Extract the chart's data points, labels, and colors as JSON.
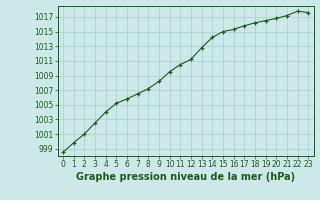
{
  "x": [
    0,
    1,
    2,
    3,
    4,
    5,
    6,
    7,
    8,
    9,
    10,
    11,
    12,
    13,
    14,
    15,
    16,
    17,
    18,
    19,
    20,
    21,
    22,
    23
  ],
  "y": [
    998.5,
    999.8,
    1001.0,
    1002.5,
    1004.0,
    1005.2,
    1005.8,
    1006.5,
    1007.2,
    1008.2,
    1009.5,
    1010.5,
    1011.2,
    1012.8,
    1014.2,
    1015.0,
    1015.3,
    1015.8,
    1016.2,
    1016.5,
    1016.8,
    1017.2,
    1017.8,
    1017.6
  ],
  "line_color": "#1a5c1a",
  "marker": "+",
  "marker_color": "#1a5c1a",
  "bg_color": "#cce8e8",
  "grid_color": "#aacfcf",
  "title": "Graphe pression niveau de la mer (hPa)",
  "xlim": [
    -0.5,
    23.5
  ],
  "ylim": [
    998,
    1018.5
  ],
  "yticks": [
    999,
    1001,
    1003,
    1005,
    1007,
    1009,
    1011,
    1013,
    1015,
    1017
  ],
  "xticks": [
    0,
    1,
    2,
    3,
    4,
    5,
    6,
    7,
    8,
    9,
    10,
    11,
    12,
    13,
    14,
    15,
    16,
    17,
    18,
    19,
    20,
    21,
    22,
    23
  ],
  "title_fontsize": 7,
  "tick_fontsize": 5.5,
  "title_color": "#1a5c1a",
  "axis_color": "#1a5c1a",
  "linewidth": 0.8,
  "markersize": 3.5,
  "markeredgewidth": 0.9
}
